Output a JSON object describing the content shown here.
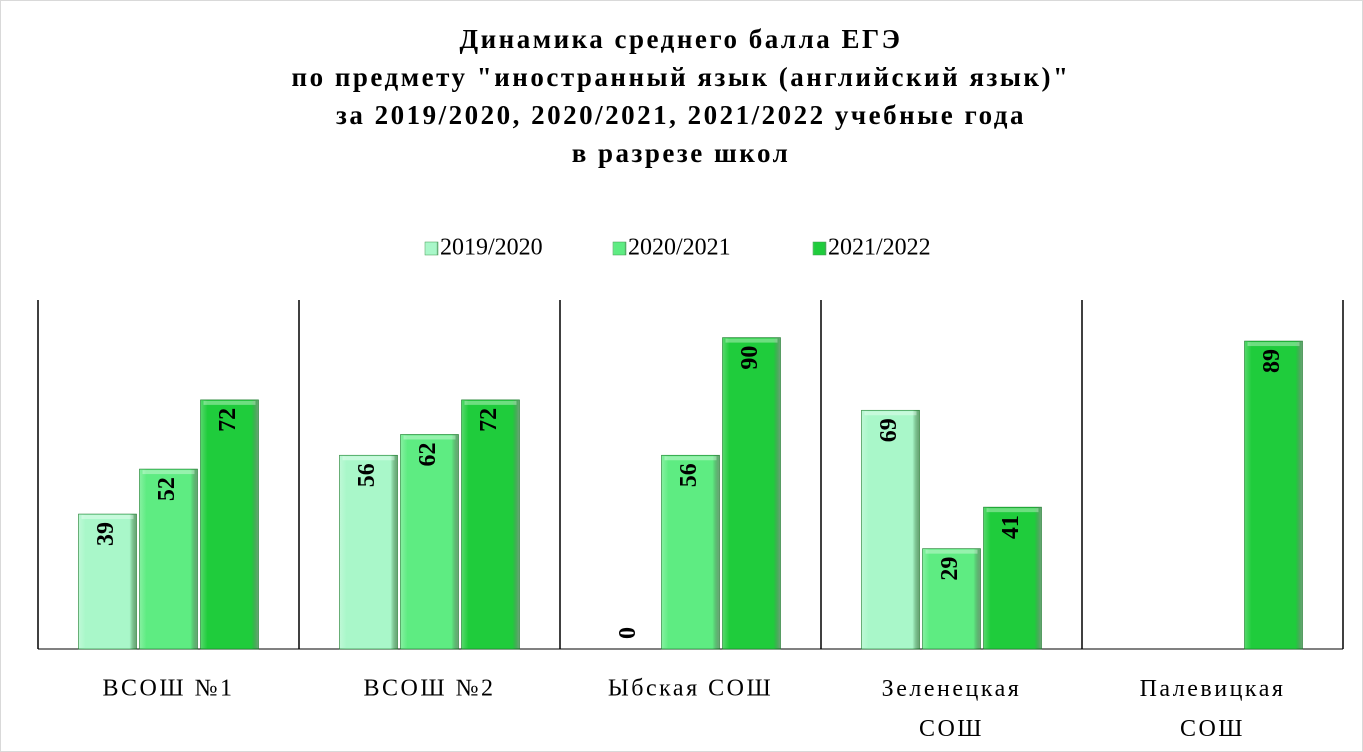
{
  "chart_data": {
    "type": "bar",
    "title": [
      "Динамика среднего  балла ЕГЭ",
      "по предмету \"иностранный язык (английский язык)\"",
      "за 2019/2020,  2020/2021, 2021/2022 учебные года",
      "в разрезе школ"
    ],
    "categories": [
      "ВСОШ №1",
      "ВСОШ №2",
      "Ыбская СОШ",
      "Зеленецкая СОШ",
      "Палевицкая СОШ"
    ],
    "series": [
      {
        "name": "2019/2020",
        "color": "#a9f7c9",
        "values": [
          39,
          56,
          0,
          69,
          null
        ]
      },
      {
        "name": "2020/2021",
        "color": "#5eec82",
        "values": [
          52,
          62,
          56,
          29,
          null
        ]
      },
      {
        "name": "2021/2022",
        "color": "#1fcc3c",
        "values": [
          72,
          72,
          90,
          41,
          89
        ]
      }
    ],
    "ylim": [
      0,
      100
    ],
    "legend": "top"
  }
}
